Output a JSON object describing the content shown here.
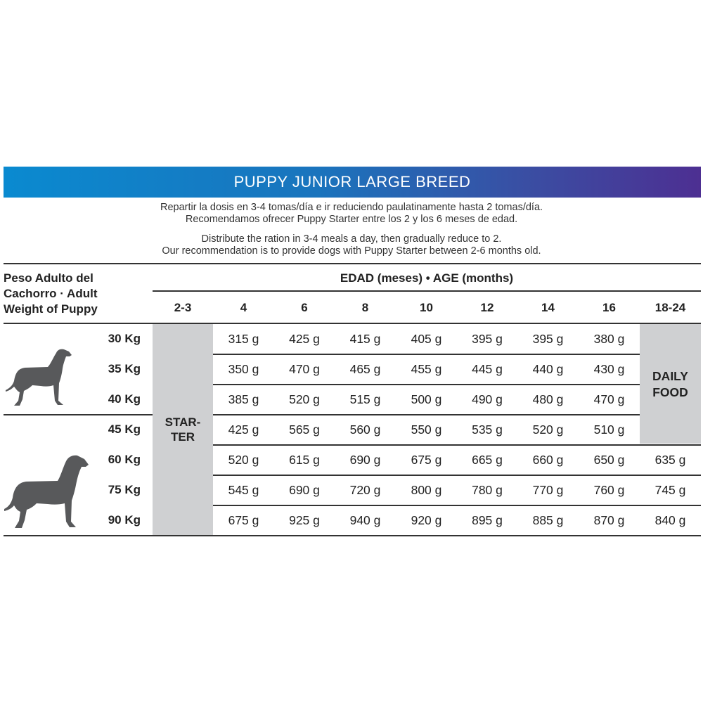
{
  "title": "PUPPY JUNIOR LARGE BREED",
  "notes_es": [
    "Repartir la dosis en 3-4 tomas/día e ir reduciendo paulatinamente hasta 2 tomas/día.",
    "Recomendamos ofrecer Puppy Starter entre los 2 y los 6 meses de edad."
  ],
  "notes_en": [
    "Distribute the ration in 3-4 meals a day, then gradually reduce to 2.",
    "Our recommendation is to provide dogs with Puppy Starter between 2-6 months old."
  ],
  "table": {
    "weight_header": [
      "Peso Adulto del",
      "Cachorro · Adult",
      "Weight of Puppy"
    ],
    "age_header": "EDAD (meses) • AGE (months)",
    "columns": [
      "2-3",
      "4",
      "6",
      "8",
      "10",
      "12",
      "14",
      "16",
      "18-24"
    ],
    "starter_label": [
      "STAR-",
      "TER"
    ],
    "daily_food_label": [
      "DAILY",
      "FOOD"
    ],
    "rows": [
      {
        "weight": "30 Kg",
        "values": [
          "315 g",
          "425 g",
          "415 g",
          "405 g",
          "395 g",
          "395 g",
          "380 g"
        ]
      },
      {
        "weight": "35 Kg",
        "values": [
          "350 g",
          "470 g",
          "465 g",
          "455 g",
          "445 g",
          "440 g",
          "430 g"
        ]
      },
      {
        "weight": "40 Kg",
        "values": [
          "385 g",
          "520 g",
          "515 g",
          "500 g",
          "490 g",
          "480 g",
          "470 g"
        ]
      },
      {
        "weight": "45 Kg",
        "values": [
          "425 g",
          "565 g",
          "560 g",
          "550 g",
          "535 g",
          "520 g",
          "510 g"
        ]
      },
      {
        "weight": "60 Kg",
        "values": [
          "520 g",
          "615 g",
          "690 g",
          "675 g",
          "665 g",
          "660 g",
          "650 g",
          "635 g"
        ]
      },
      {
        "weight": "75 Kg",
        "values": [
          "545 g",
          "690 g",
          "720 g",
          "800 g",
          "780 g",
          "770 g",
          "760 g",
          "745 g"
        ]
      },
      {
        "weight": "90 Kg",
        "values": [
          "675 g",
          "925 g",
          "940 g",
          "920 g",
          "895 g",
          "885 g",
          "870 g",
          "840 g"
        ]
      }
    ]
  },
  "icons": [
    "dog-silhouette-medium-icon",
    "dog-silhouette-large-icon"
  ],
  "colors": {
    "gradient_start": "#0a8ad0",
    "gradient_end": "#4d2f92",
    "shaded_cell": "#cfd0d2"
  }
}
